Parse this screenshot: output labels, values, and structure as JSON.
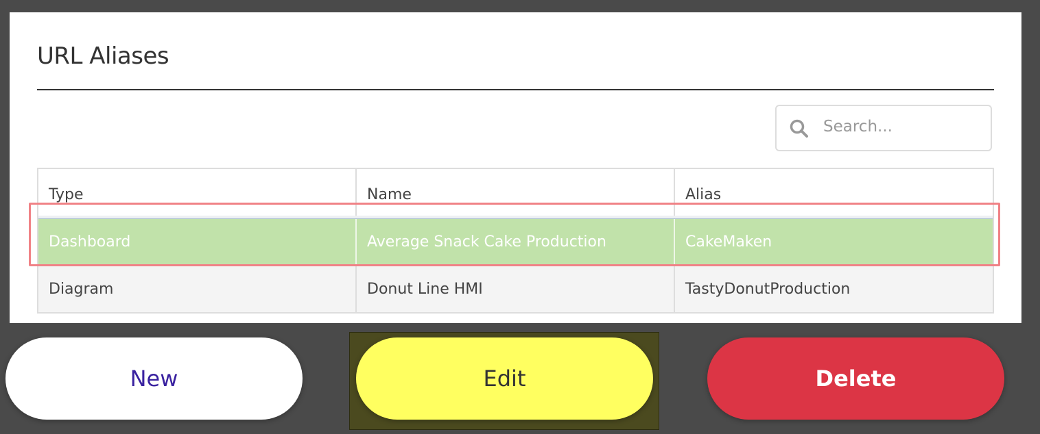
{
  "page": {
    "title": "URL Aliases"
  },
  "search": {
    "placeholder": "Search...",
    "value": "",
    "icon": "search-icon"
  },
  "table": {
    "columns": [
      "Type",
      "Name",
      "Alias"
    ],
    "rows": [
      {
        "type": "Dashboard",
        "name": "Average Snack Cake Production",
        "alias": "CakeMaken",
        "selected": true
      },
      {
        "type": "Diagram",
        "name": "Donut Line HMI",
        "alias": "TastyDonutProduction",
        "selected": false
      }
    ]
  },
  "buttons": {
    "new": "New",
    "edit": "Edit",
    "delete": "Delete"
  },
  "colors": {
    "selected_row": "#c1e2aa",
    "new_text": "#3a22a0",
    "edit_bg": "#ffff60",
    "delete_bg": "#dc3545",
    "highlight": "#f08286"
  }
}
